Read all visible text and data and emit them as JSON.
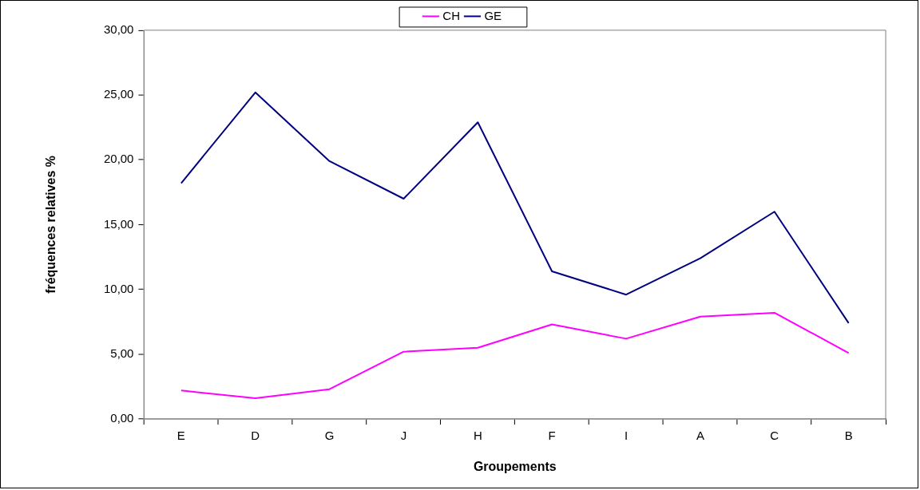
{
  "chart_data": {
    "type": "line",
    "xlabel": "Groupements",
    "ylabel": "fréquences relatives %",
    "categories": [
      "E",
      "D",
      "G",
      "J",
      "H",
      "F",
      "I",
      "A",
      "C",
      "B"
    ],
    "series": [
      {
        "name": "CH",
        "color": "#ff00ff",
        "values": [
          2.2,
          1.6,
          2.3,
          5.2,
          5.5,
          7.3,
          6.2,
          7.9,
          8.2,
          5.1
        ]
      },
      {
        "name": "GE",
        "color": "#000080",
        "values": [
          18.2,
          25.2,
          19.9,
          17.0,
          22.9,
          11.4,
          9.6,
          12.4,
          16.0,
          7.4
        ]
      }
    ],
    "ylim": [
      0,
      30
    ],
    "yticks": [
      {
        "value": 0,
        "label": "0,00"
      },
      {
        "value": 5,
        "label": "5,00"
      },
      {
        "value": 10,
        "label": "10,00"
      },
      {
        "value": 15,
        "label": "15,00"
      },
      {
        "value": 20,
        "label": "20,00"
      },
      {
        "value": 25,
        "label": "25,00"
      },
      {
        "value": 30,
        "label": "30,00"
      }
    ],
    "grid": false,
    "legend": "top",
    "marker": "none",
    "line_style": "solid"
  }
}
